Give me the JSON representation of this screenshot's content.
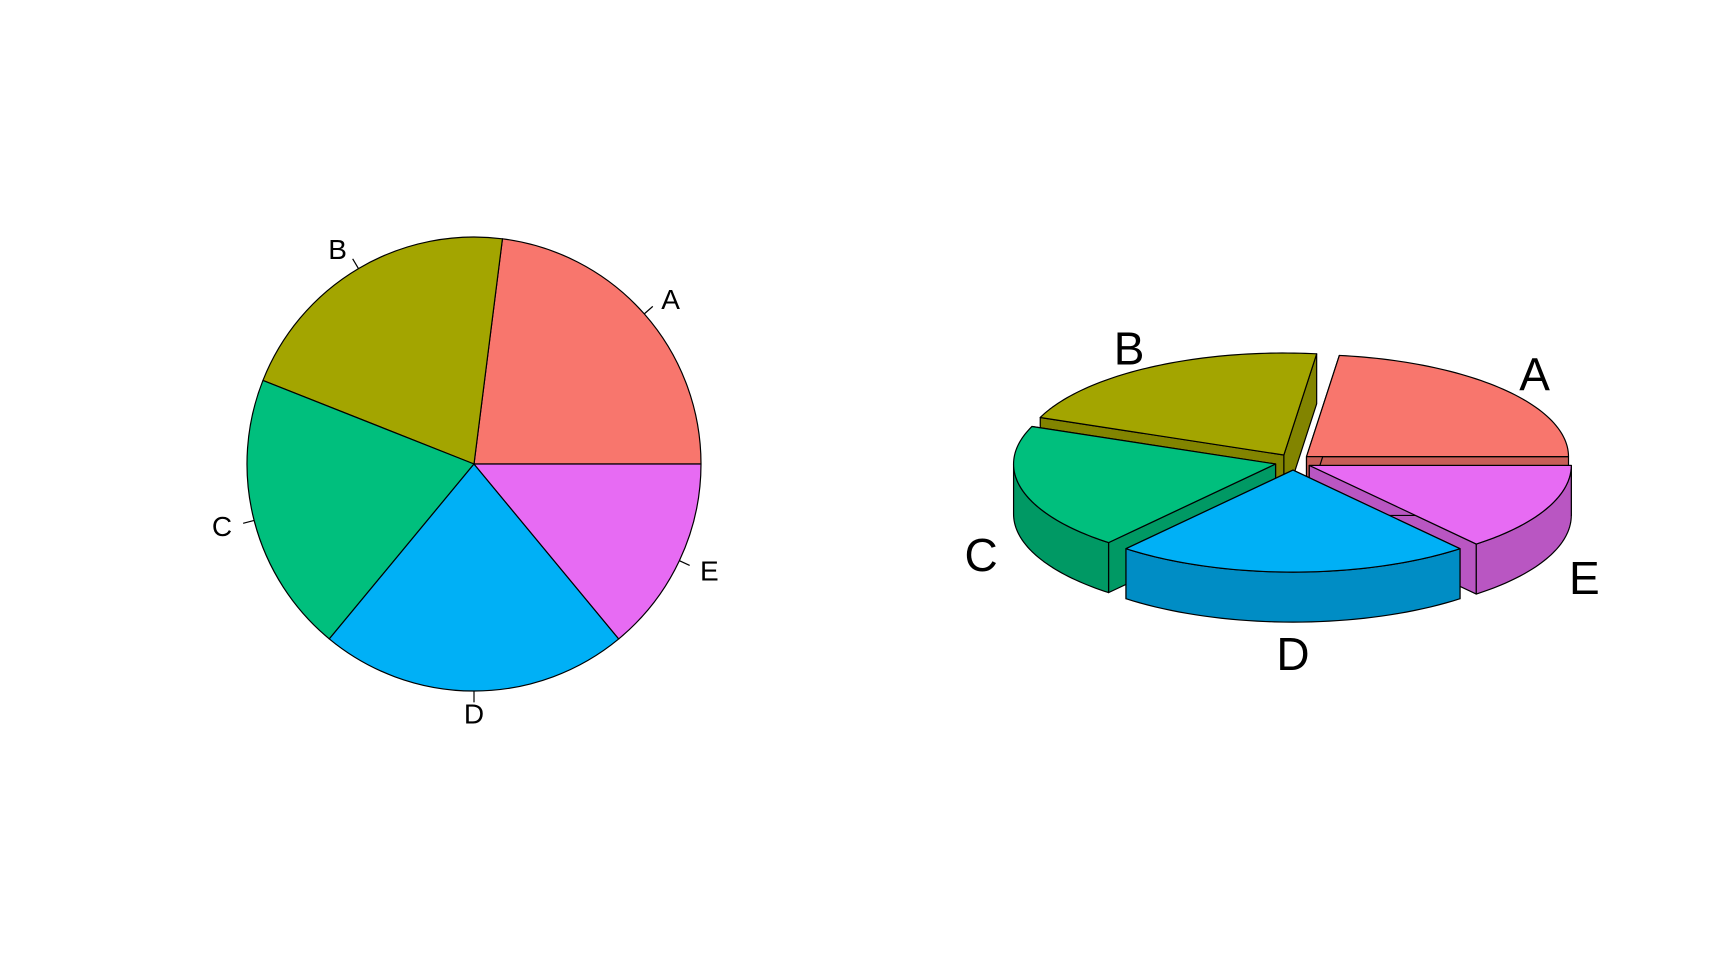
{
  "chart_data": [
    {
      "type": "pie",
      "style": "flat",
      "categories": [
        "A",
        "B",
        "C",
        "D",
        "E"
      ],
      "values": [
        23,
        21,
        20,
        22,
        14
      ],
      "colors": [
        "#F8766D",
        "#A3A500",
        "#00BF7D",
        "#00B0F6",
        "#E76BF3"
      ],
      "start_angle_deg": 0,
      "direction": "counterclockwise",
      "legend": "none"
    },
    {
      "type": "pie",
      "style": "3d-exploded",
      "categories": [
        "A",
        "B",
        "C",
        "D",
        "E"
      ],
      "values": [
        23,
        21,
        20,
        22,
        14
      ],
      "colors": [
        "#F8766D",
        "#A3A500",
        "#00BF7D",
        "#00B0F6",
        "#E76BF3"
      ],
      "side_colors": [
        "#C75E57",
        "#828400",
        "#009964",
        "#008DC5",
        "#B956C2"
      ],
      "start_angle_deg": 0,
      "direction": "counterclockwise",
      "exploded": true,
      "legend": "none"
    }
  ]
}
